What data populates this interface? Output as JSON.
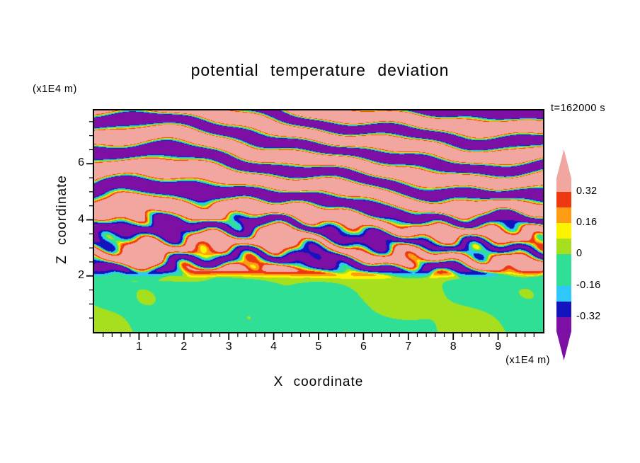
{
  "title": "potential temperature deviation",
  "annotations": {
    "time": "t=162000 s",
    "z_axis_unit": "(x1E4 m)",
    "x_axis_unit": "(x1E4 m)"
  },
  "axes": {
    "x_label": "X coordinate",
    "z_label": "Z coordinate"
  },
  "chart_data": {
    "type": "heatmap",
    "subtype": "filled-contour",
    "title": "potential temperature deviation",
    "xlabel": "X coordinate",
    "ylabel": "Z coordinate",
    "x_unit_label": "(x1E4 m)",
    "z_unit_label": "(x1E4 m)",
    "time_label": "t=162000 s",
    "x_range": [
      0,
      10
    ],
    "z_range": [
      0,
      7.9
    ],
    "x_tick_labels": [
      "1",
      "2",
      "3",
      "4",
      "5",
      "6",
      "7",
      "8",
      "9"
    ],
    "x_tick_values": [
      1,
      2,
      3,
      4,
      5,
      6,
      7,
      8,
      9
    ],
    "x_minor_tick_step": 0.2,
    "z_tick_labels": [
      "2",
      "4",
      "6"
    ],
    "z_tick_values": [
      2,
      4,
      6
    ],
    "z_minor_tick_step": 0.5,
    "grid": false,
    "legend_position": "right-colorbar",
    "colorbar": {
      "labels": [
        "0.32",
        "0.16",
        "0",
        "-0.16",
        "-0.32"
      ],
      "thresholds": [
        0.32,
        0.24,
        0.16,
        0.08,
        0,
        -0.16,
        -0.24,
        -0.32
      ],
      "bands": [
        {
          "name": "above 0.32",
          "color": "#F2A6A0"
        },
        {
          "name": "0.24 to 0.32",
          "color": "#EE3811"
        },
        {
          "name": "0.16 to 0.24",
          "color": "#FF9C14"
        },
        {
          "name": "0.08 to 0.16",
          "color": "#FCF300"
        },
        {
          "name": "0 to 0.08",
          "color": "#A5DF1E"
        },
        {
          "name": "-0.16 to 0",
          "color": "#30DF96"
        },
        {
          "name": "-0.24 to -0.16",
          "color": "#30C8FA"
        },
        {
          "name": "-0.32 to -0.24",
          "color": "#1414BE"
        },
        {
          "name": "below -0.32",
          "color": "#7D0FA5"
        }
      ]
    },
    "field_summary": {
      "mixed_layer_top_z": 2.0,
      "lower_region_amplitude": 0.07,
      "upper_region_amplitude": 0.5,
      "vertical_band_wavelength": 1.12
    }
  }
}
